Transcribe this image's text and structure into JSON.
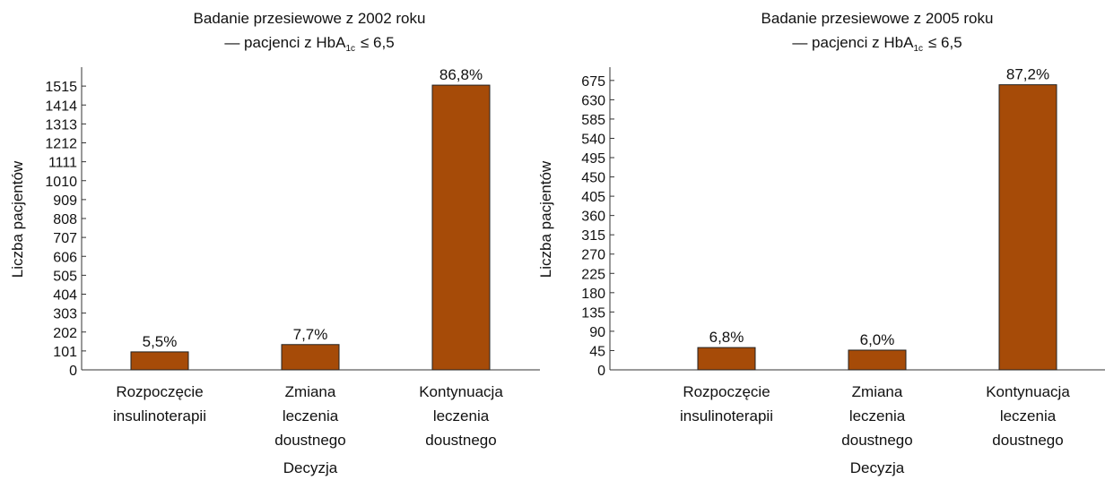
{
  "chart_data": [
    {
      "type": "bar",
      "title": "Badanie przesiewowe z 2002 roku",
      "subtitle_parts": [
        "— pacjenci z HbA",
        "1c",
        "≤ 6,5"
      ],
      "x_label": "Decyzja",
      "y_label": "Liczba pacjentów",
      "categories": [
        "Rozpoczęcie\ninsulinoterapii",
        "Zmiana\nleczenia\ndoustnego",
        "Kontynuacja\nleczenia\ndoustnego"
      ],
      "values": [
        96,
        135,
        1520
      ],
      "annotations": [
        "5,5%",
        "7,7%",
        "86,8%"
      ],
      "color": "#a64b08",
      "ylim": [
        0,
        1616
      ],
      "yticks": [
        0,
        101,
        202,
        303,
        404,
        505,
        606,
        707,
        808,
        909,
        1010,
        1111,
        1212,
        1313,
        1414,
        1515
      ]
    },
    {
      "type": "bar",
      "title": "Badanie przesiewowe z 2005 roku",
      "subtitle_parts": [
        "— pacjenci z HbA",
        "1c",
        "≤ 6,5"
      ],
      "x_label": "Decyzja",
      "y_label": "Liczba pacjentów",
      "categories": [
        "Rozpoczęcie\ninsulinoterapii",
        "Zmiana\nleczenia\ndoustnego",
        "Kontynuacja\nleczenia\ndoustnego"
      ],
      "values": [
        52,
        46,
        665
      ],
      "annotations": [
        "6,8%",
        "6,0%",
        "87,2%"
      ],
      "color": "#a64b08",
      "ylim": [
        0,
        706
      ],
      "yticks": [
        0,
        45,
        90,
        135,
        180,
        225,
        270,
        315,
        360,
        405,
        450,
        495,
        540,
        585,
        630,
        675
      ]
    }
  ]
}
